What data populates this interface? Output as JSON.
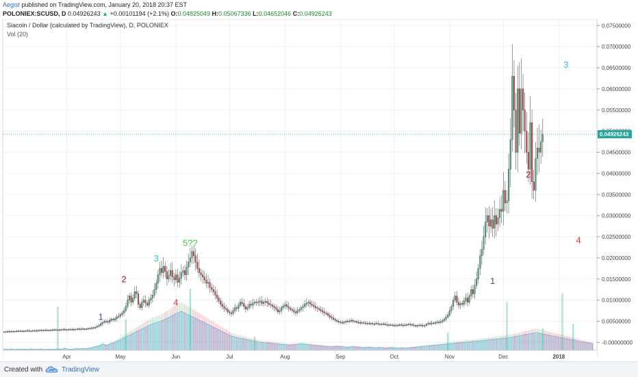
{
  "header": {
    "author": "Aegist",
    "published": "published on TradingView.com, January 20, 2018 20:37 EST",
    "symbol": "POLONIEX:SCUSD, D",
    "last": "0.04926243",
    "change": "+0.00101194 (+2.1%)",
    "o_label": "O:",
    "o": "0.04825049",
    "h_label": "H:",
    "h": "0.05067336",
    "l_label": "L:",
    "l": "0.04652046",
    "c_label": "C:",
    "c": "0.04926243"
  },
  "footer": {
    "created": "Created with",
    "brand": "TradingView"
  },
  "colors": {
    "up": "#53b987",
    "down": "#eb4d5c",
    "volume_area": "#8cc8f0",
    "price_line": "#26a69a"
  },
  "chart_data": {
    "type": "candlestick",
    "title": "Siacoin / Dollar (calculated by TradingView), D, POLONIEX",
    "indicator": "Vol (20)",
    "y_ticks": [
      "0.07500000",
      "0.07000000",
      "0.06500000",
      "0.06000000",
      "0.05500000",
      "0.05000000",
      "0.04500000",
      "0.04000000",
      "0.03500000",
      "0.03000000",
      "0.02500000",
      "0.02000000",
      "0.01500000",
      "0.01000000",
      "0.00500000",
      "-0.00000000"
    ],
    "ylim": [
      -0.0035,
      0.0765
    ],
    "x_ticks": [
      {
        "label": "Apr",
        "day": 35
      },
      {
        "label": "May",
        "day": 65
      },
      {
        "label": "Jun",
        "day": 96
      },
      {
        "label": "Jul",
        "day": 126
      },
      {
        "label": "Aug",
        "day": 157
      },
      {
        "label": "Sep",
        "day": 188
      },
      {
        "label": "Oct",
        "day": 218
      },
      {
        "label": "Nov",
        "day": 249
      },
      {
        "label": "Dec",
        "day": 279
      },
      {
        "label": "2018",
        "day": 310
      }
    ],
    "x_range_days": [
      0,
      329
    ],
    "last_price_label": "0.04926243",
    "last_price": 0.04926243,
    "closes": [
      0.0025,
      0.0025,
      0.0026,
      0.0026,
      0.0025,
      0.0026,
      0.0026,
      0.0027,
      0.0026,
      0.0027,
      0.0027,
      0.0026,
      0.0027,
      0.0028,
      0.0027,
      0.0027,
      0.0028,
      0.0027,
      0.0028,
      0.0028,
      0.0029,
      0.0028,
      0.0029,
      0.0029,
      0.0028,
      0.0029,
      0.0029,
      0.003,
      0.0029,
      0.003,
      0.003,
      0.0029,
      0.003,
      0.0031,
      0.003,
      0.003,
      0.0031,
      0.0031,
      0.003,
      0.0031,
      0.0031,
      0.0032,
      0.0031,
      0.0032,
      0.0032,
      0.0031,
      0.0032,
      0.0033,
      0.0033,
      0.0034,
      0.0035,
      0.0036,
      0.0038,
      0.004,
      0.0044,
      0.0047,
      0.005,
      0.0049,
      0.0048,
      0.0052,
      0.0055,
      0.0053,
      0.0056,
      0.006,
      0.0062,
      0.0066,
      0.007,
      0.0075,
      0.0085,
      0.01,
      0.011,
      0.0095,
      0.0105,
      0.012,
      0.0115,
      0.009,
      0.0082,
      0.0095,
      0.01,
      0.0093,
      0.0088,
      0.01,
      0.0105,
      0.0112,
      0.0125,
      0.014,
      0.016,
      0.0175,
      0.0165,
      0.018,
      0.0168,
      0.015,
      0.0158,
      0.017,
      0.0155,
      0.0148,
      0.016,
      0.0142,
      0.0152,
      0.0165,
      0.017,
      0.016,
      0.0178,
      0.019,
      0.02,
      0.0215,
      0.0205,
      0.019,
      0.0175,
      0.0165,
      0.016,
      0.0155,
      0.0148,
      0.014,
      0.0142,
      0.013,
      0.0125,
      0.012,
      0.0112,
      0.0105,
      0.0098,
      0.009,
      0.0085,
      0.008,
      0.0078,
      0.0072,
      0.007,
      0.0068,
      0.0075,
      0.0082,
      0.008,
      0.0088,
      0.0095,
      0.0092,
      0.0085,
      0.0079,
      0.0083,
      0.009,
      0.0088,
      0.0093,
      0.0095,
      0.0094,
      0.0096,
      0.0098,
      0.0092,
      0.0095,
      0.0097,
      0.0093,
      0.009,
      0.0088,
      0.0085,
      0.0082,
      0.0078,
      0.0072,
      0.0075,
      0.0082,
      0.0086,
      0.0089,
      0.0085,
      0.0081,
      0.0078,
      0.0076,
      0.0072,
      0.007,
      0.0075,
      0.0078,
      0.0082,
      0.0085,
      0.009,
      0.0093,
      0.0095,
      0.0091,
      0.0088,
      0.0085,
      0.0082,
      0.008,
      0.0078,
      0.0075,
      0.0072,
      0.007,
      0.0068,
      0.0064,
      0.006,
      0.0058,
      0.0055,
      0.0052,
      0.005,
      0.0048,
      0.0047,
      0.0046,
      0.0048,
      0.005,
      0.0049,
      0.0051,
      0.0052,
      0.005,
      0.0049,
      0.0048,
      0.0047,
      0.0046,
      0.0047,
      0.0046,
      0.0045,
      0.0045,
      0.0044,
      0.0045,
      0.0044,
      0.0044,
      0.0045,
      0.0043,
      0.0043,
      0.0044,
      0.0043,
      0.0042,
      0.0041,
      0.0042,
      0.0041,
      0.0041,
      0.004,
      0.004,
      0.0041,
      0.0042,
      0.0041,
      0.004,
      0.0041,
      0.0042,
      0.0043,
      0.0042,
      0.0041,
      0.004,
      0.0039,
      0.004,
      0.0041,
      0.004,
      0.0039,
      0.004,
      0.0043,
      0.0045,
      0.0044,
      0.0046,
      0.0045,
      0.0047,
      0.0048,
      0.0047,
      0.0049,
      0.0052,
      0.0055,
      0.006,
      0.0065,
      0.0075,
      0.0085,
      0.01,
      0.011,
      0.0095,
      0.0088,
      0.0092,
      0.009,
      0.0098,
      0.0105,
      0.0095,
      0.011,
      0.0125,
      0.0115,
      0.0135,
      0.015,
      0.0175,
      0.0205,
      0.022,
      0.025,
      0.0285,
      0.03,
      0.0275,
      0.029,
      0.027,
      0.03,
      0.028,
      0.0295,
      0.0315,
      0.031,
      0.036,
      0.033,
      0.0335,
      0.041,
      0.048,
      0.063,
      0.055,
      0.045,
      0.06,
      0.0495,
      0.06,
      0.055,
      0.05,
      0.045,
      0.041,
      0.052,
      0.038,
      0.036,
      0.0435,
      0.046,
      0.045,
      0.0475,
      0.0493
    ],
    "volumes": [
      0.8,
      0.6,
      0.7,
      0.5,
      0.9,
      0.6,
      0.5,
      0.7,
      0.6,
      0.8,
      0.5,
      0.6,
      0.7,
      0.6,
      0.5,
      0.9,
      0.7,
      0.6,
      0.5,
      0.6,
      0.7,
      0.8,
      0.6,
      0.5,
      0.6,
      0.7,
      0.6,
      0.5,
      0.6,
      0.7,
      0.8,
      0.6,
      0.7,
      0.9,
      1.2,
      0.8,
      0.7,
      0.6,
      0.7,
      0.8,
      0.9,
      1.0,
      0.8,
      0.9,
      1.1,
      1.0,
      0.9,
      1.2,
      1.3,
      1.5,
      1.8,
      2.0,
      2.2,
      2.5,
      3.0,
      3.5,
      3.2,
      2.8,
      3.0,
      3.5,
      3.8,
      4.0,
      4.5,
      5.0,
      5.5,
      6.0,
      6.5,
      7.0,
      7.5,
      8.0,
      8.5,
      9.0,
      9.5,
      10.0,
      10.5,
      11.0,
      11.5,
      12.0,
      12.5,
      13.0,
      13.5,
      14.0,
      14.5,
      15.0,
      15.2,
      15.5,
      15.8,
      16.0,
      16.5,
      17.0,
      17.5,
      18.0,
      18.5,
      19.0,
      19.5,
      20.0,
      20.5,
      21.0,
      21.5,
      22.0,
      21.5,
      21.0,
      20.5,
      20.0,
      19.5,
      19.0,
      18.5,
      18.0,
      17.5,
      17.0,
      16.5,
      16.0,
      15.5,
      15.0,
      14.5,
      14.0,
      13.5,
      13.0,
      12.5,
      12.0,
      11.5,
      11.0,
      10.5,
      10.0,
      9.5,
      9.0,
      8.5,
      8.0,
      7.8,
      7.5,
      7.2,
      7.0,
      6.8,
      6.6,
      6.4,
      6.2,
      6.0,
      5.8,
      5.6,
      5.4,
      5.2,
      5.0,
      4.8,
      4.6,
      4.5,
      4.4,
      4.3,
      4.2,
      4.1,
      4.0,
      3.9,
      3.8,
      3.7,
      3.6,
      3.5,
      3.4,
      3.3,
      3.2,
      3.1,
      3.0,
      3.0,
      3.1,
      3.2,
      3.3,
      3.4,
      3.5,
      3.6,
      3.5,
      3.4,
      3.3,
      3.2,
      3.1,
      3.0,
      2.9,
      2.8,
      2.7,
      2.6,
      2.5,
      2.4,
      2.3,
      2.2,
      2.1,
      2.0,
      2.0,
      2.1,
      2.2,
      2.3,
      2.2,
      2.1,
      2.0,
      1.9,
      1.8,
      1.8,
      1.9,
      2.0,
      2.1,
      2.0,
      1.9,
      1.8,
      1.7,
      1.6,
      1.5,
      1.6,
      1.7,
      1.8,
      1.7,
      1.6,
      1.5,
      1.4,
      1.5,
      1.6,
      1.5,
      1.4,
      1.3,
      1.4,
      1.5,
      1.6,
      1.5,
      1.4,
      1.3,
      1.2,
      1.3,
      1.4,
      1.3,
      1.2,
      1.3,
      1.4,
      1.5,
      1.6,
      1.7,
      1.8,
      1.9,
      2.0,
      2.1,
      2.2,
      2.3,
      2.4,
      2.5,
      2.6,
      2.7,
      2.8,
      2.9,
      3.0,
      3.1,
      3.2,
      3.3,
      3.4,
      3.5,
      3.6,
      3.7,
      3.8,
      3.9,
      4.0,
      4.1,
      4.2,
      4.3,
      4.4,
      4.5,
      4.6,
      4.7,
      4.8,
      4.9,
      5.0,
      5.1,
      5.2,
      5.3,
      5.4,
      5.5,
      5.6,
      5.7,
      5.8,
      5.9,
      6.0,
      6.1,
      6.2,
      6.3,
      6.4,
      6.5,
      6.6,
      6.7,
      6.8,
      6.9,
      7.0,
      7.2,
      7.4,
      7.6,
      7.8,
      8.0,
      8.2,
      8.4,
      8.6,
      8.8,
      9.0,
      9.2,
      9.4,
      9.6,
      9.8,
      10.0,
      9.8,
      9.6,
      9.4,
      9.2,
      9.0,
      8.8,
      8.6,
      8.4,
      8.2,
      8.0,
      7.8,
      7.6,
      7.4,
      7.2,
      7.0,
      6.8,
      6.6,
      6.4,
      6.2,
      6.0,
      5.8,
      5.6,
      5.4,
      5.2,
      5.0,
      4.8,
      4.6,
      4.4,
      4.2,
      4.0,
      3.8,
      3.6
    ],
    "volume_spikes": [
      {
        "day": 30,
        "v": 20
      },
      {
        "day": 68,
        "v": 14
      },
      {
        "day": 104,
        "v": 28
      },
      {
        "day": 140,
        "v": 6
      },
      {
        "day": 248,
        "v": 8
      },
      {
        "day": 281,
        "v": 22
      },
      {
        "day": 301,
        "v": 10
      },
      {
        "day": 312,
        "v": 26
      },
      {
        "day": 318,
        "v": 12
      }
    ],
    "annotations": [
      {
        "text": "1",
        "day": 54,
        "price": 0.0053,
        "color": "#4a4a9a"
      },
      {
        "text": "2",
        "day": 67,
        "price": 0.0142,
        "color": "#9b1b30"
      },
      {
        "text": "3",
        "day": 85,
        "price": 0.0192,
        "color": "#2ec4d4"
      },
      {
        "text": "4",
        "day": 96,
        "price": 0.0087,
        "color": "#e0303a"
      },
      {
        "text": "5??",
        "day": 104,
        "price": 0.0228,
        "color": "#3ec93e"
      },
      {
        "text": "1",
        "day": 273,
        "price": 0.0138,
        "color": "#555555"
      },
      {
        "text": "2",
        "day": 293,
        "price": 0.039,
        "color": "#9b1b30"
      },
      {
        "text": "3",
        "day": 314,
        "price": 0.065,
        "color": "#2ec4d4"
      },
      {
        "text": "4",
        "day": 321,
        "price": 0.0235,
        "color": "#e0303a"
      }
    ]
  }
}
